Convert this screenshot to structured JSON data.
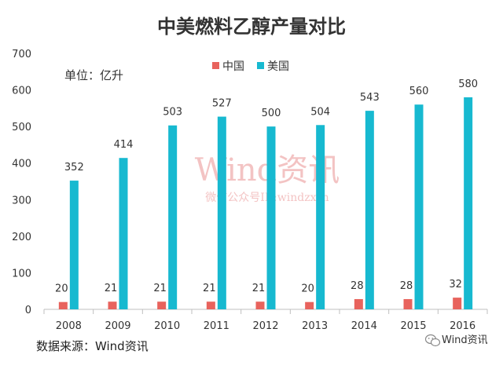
{
  "chart_data": {
    "type": "bar",
    "title": "中美燃料乙醇产量对比",
    "unit_label": "单位：亿升",
    "categories": [
      "2008",
      "2009",
      "2010",
      "2011",
      "2012",
      "2013",
      "2014",
      "2015",
      "2016"
    ],
    "series": [
      {
        "name": "中国",
        "color": "#e8635d",
        "values": [
          20,
          21,
          21,
          21,
          21,
          20,
          28,
          28,
          32
        ]
      },
      {
        "name": "美国",
        "color": "#17b9d0",
        "values": [
          352,
          414,
          503,
          527,
          500,
          504,
          543,
          560,
          580
        ]
      }
    ],
    "ylim": [
      0,
      700
    ],
    "yticks": [
      0,
      100,
      200,
      300,
      400,
      500,
      600,
      700
    ],
    "xlabel": "",
    "ylabel": "",
    "grid": false,
    "legend_position": "top-center"
  },
  "source_text": "数据来源：Wind资讯",
  "watermark": {
    "main": "Wind资讯",
    "sub": "微信公众号ID:windzxsh"
  },
  "brand_badge": {
    "icon": "wechat-icon",
    "text": "Wind资讯"
  }
}
